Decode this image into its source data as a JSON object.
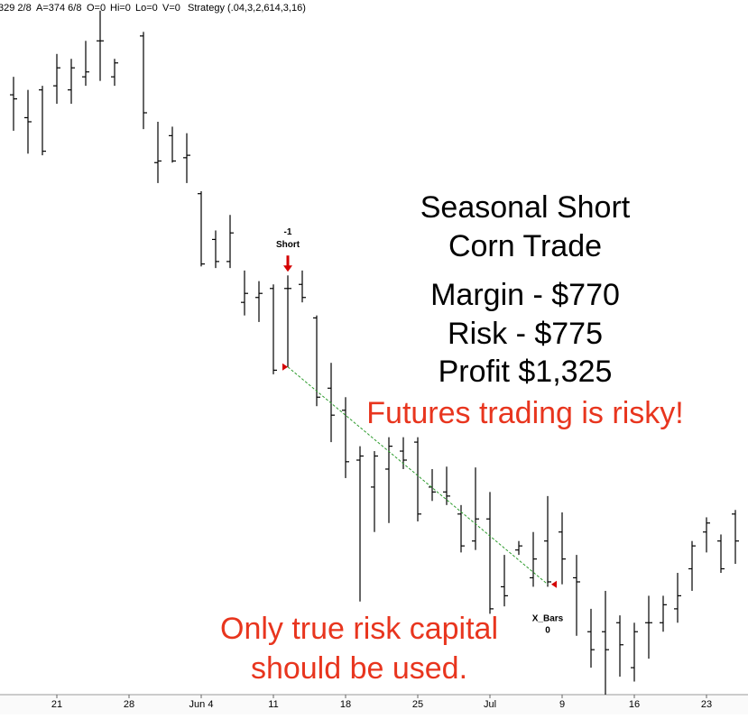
{
  "chart_data": {
    "type": "ohlc",
    "header": [
      "329 2/8",
      "A=374 6/8",
      "O=0",
      "Hi=0",
      "Lo=0",
      "V=0",
      "Strategy (.04,3,2,614,3,16)"
    ],
    "title_lines": [
      "Seasonal Short",
      "Corn Trade"
    ],
    "stats": [
      "Margin - $770",
      "Risk - $775",
      "Profit $1,325"
    ],
    "warning": "Futures trading is risky!",
    "disclaimer": [
      "Only true risk capital",
      "should be used."
    ],
    "categories": [
      null,
      null,
      null,
      "21",
      null,
      null,
      null,
      null,
      "28",
      null,
      null,
      null,
      null,
      "Jun 4",
      null,
      null,
      null,
      null,
      "11",
      null,
      null,
      null,
      null,
      "18",
      null,
      null,
      null,
      null,
      "25",
      null,
      null,
      null,
      null,
      "Jul",
      null,
      null,
      null,
      null,
      "9",
      null,
      null,
      null,
      null,
      "16",
      null,
      null,
      null,
      null,
      "23",
      null,
      null
    ],
    "open": [
      423.4,
      420.6,
      424.0,
      424.5,
      424.0,
      425.6,
      430.0,
      425.6,
      null,
      430.6,
      415.1,
      418.4,
      415.7,
      411.3,
      405.7,
      403.0,
      398.0,
      398.6,
      399.7,
      399.7,
      400.2,
      396.1,
      387.5,
      384.8,
      378.7,
      375.4,
      377.6,
      379.8,
      380.9,
      375.4,
      374.8,
      372.1,
      368.8,
      371.5,
      363.2,
      367.7,
      364.3,
      368.8,
      369.9,
      364.3,
      357.7,
      357.7,
      358.8,
      353.3,
      358.8,
      358.8,
      360.5,
      365.4,
      369.9,
      368.8,
      372.1
    ],
    "high": [
      425.6,
      424.0,
      424.5,
      428.4,
      427.8,
      430.0,
      433.7,
      427.8,
      null,
      431.1,
      420.1,
      419.5,
      418.7,
      411.6,
      406.8,
      408.7,
      401.9,
      400.6,
      400.2,
      401.3,
      401.9,
      396.4,
      390.6,
      386.4,
      380.4,
      379.8,
      381.5,
      381.5,
      381.5,
      377.6,
      377.9,
      373.2,
      377.8,
      374.8,
      367.1,
      368.8,
      369.9,
      374.3,
      372.3,
      367.1,
      360.5,
      362.7,
      359.7,
      358.8,
      362.1,
      362.1,
      364.9,
      368.8,
      371.7,
      369.6,
      372.6
    ],
    "low": [
      419.0,
      416.2,
      416.0,
      422.3,
      422.3,
      424.5,
      425.1,
      424.5,
      null,
      419.2,
      412.6,
      415.1,
      412.6,
      402.4,
      402.2,
      402.2,
      396.4,
      395.6,
      389.2,
      390.1,
      398.0,
      385.3,
      380.9,
      376.5,
      361.4,
      369.9,
      371.0,
      377.6,
      371.2,
      373.7,
      373.2,
      367.4,
      367.7,
      359.9,
      360.8,
      367.1,
      363.2,
      363.2,
      363.5,
      357.2,
      353.3,
      350.0,
      352.2,
      351.6,
      354.4,
      357.7,
      358.8,
      362.7,
      367.4,
      364.9,
      366.0
    ],
    "close": [
      422.9,
      420.1,
      416.5,
      426.7,
      426.7,
      426.2,
      430.0,
      427.3,
      null,
      421.2,
      415.3,
      415.3,
      416.0,
      402.7,
      403.0,
      406.5,
      399.1,
      399.1,
      389.7,
      399.7,
      398.6,
      386.4,
      384.2,
      378.5,
      379.2,
      379.2,
      380.4,
      378.7,
      372.1,
      374.8,
      374.3,
      368.2,
      371.5,
      360.5,
      362.1,
      368.2,
      366.6,
      363.8,
      366.6,
      363.8,
      355.5,
      355.5,
      356.1,
      357.7,
      358.8,
      361.0,
      362.1,
      368.2,
      371.0,
      365.4,
      368.8
    ],
    "color": "#000000",
    "ylim": [
      350,
      435
    ],
    "trade": {
      "entry_label": "-1",
      "entry_signal": "Short",
      "entry_bar": 19,
      "entry_price": 390.1,
      "exit_label": "X_Bars",
      "exit_qty": "0",
      "exit_bar": 37,
      "exit_price": 363.5,
      "marker_color": "#d40000",
      "line_color": "#2a9a2a"
    }
  }
}
